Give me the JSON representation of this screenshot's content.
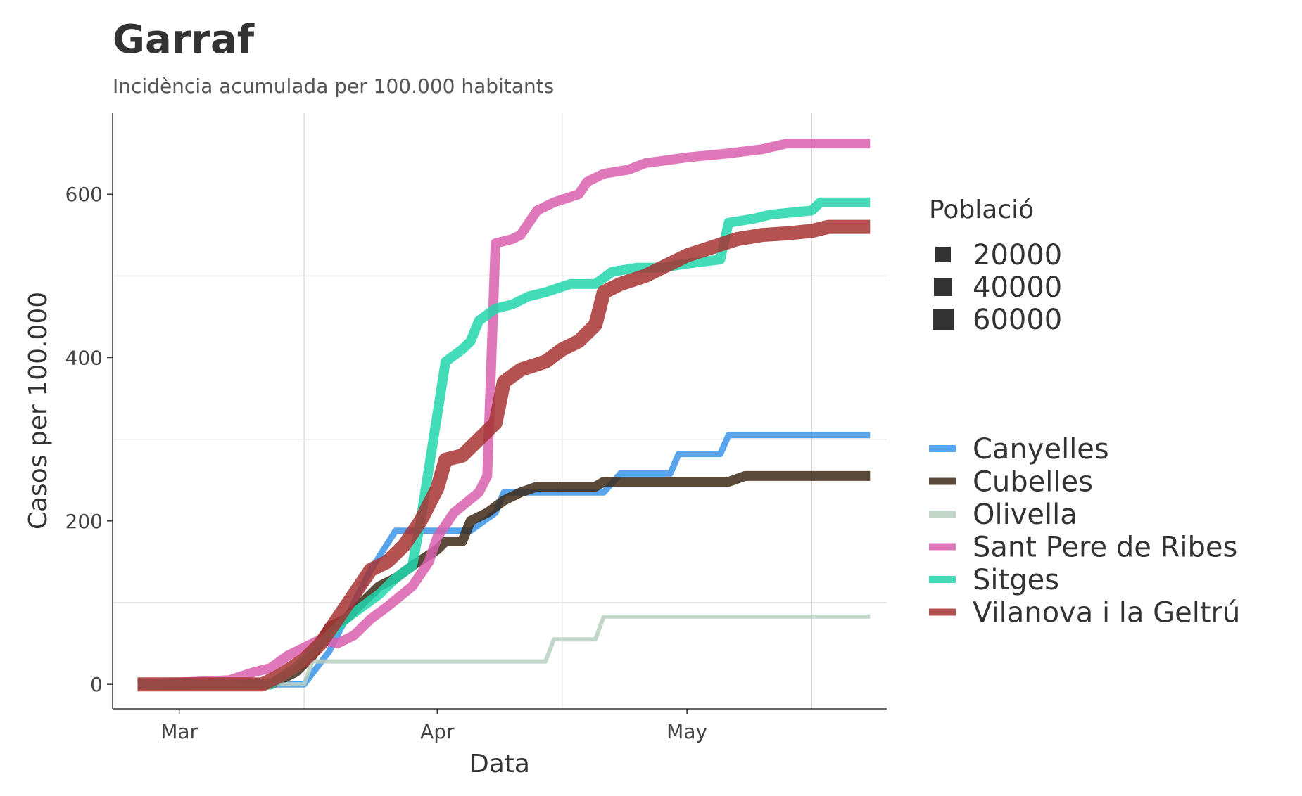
{
  "chart_data": {
    "type": "line",
    "title": "Garraf",
    "subtitle": "Incidència acumulada per 100.000 habitants",
    "xlabel": "Data",
    "ylabel": "Casos per 100.000",
    "x_ticks": [
      {
        "label": "Mar",
        "value": "2020-03-01"
      },
      {
        "label": "Apr",
        "value": "2020-04-01"
      },
      {
        "label": "May",
        "value": "2020-05-01"
      }
    ],
    "x_minor_ticks": [
      "2020-03-16",
      "2020-04-16",
      "2020-05-16"
    ],
    "xlim": [
      "2020-02-22",
      "2020-05-25"
    ],
    "y_ticks": [
      0,
      200,
      400,
      600
    ],
    "y_minor_ticks": [
      100,
      300,
      500
    ],
    "ylim": [
      -30,
      700
    ],
    "grid": true,
    "legend_placement": "right",
    "size_legend": {
      "title": "Població",
      "values": [
        "20000",
        "40000",
        "60000"
      ]
    },
    "series": [
      {
        "name": "Canyelles",
        "color": "#3b94ea",
        "size_rank": 1,
        "points": [
          [
            "2020-02-25",
            0
          ],
          [
            "2020-03-16",
            0
          ],
          [
            "2020-03-19",
            40
          ],
          [
            "2020-03-21",
            80
          ],
          [
            "2020-03-24",
            140
          ],
          [
            "2020-03-27",
            188
          ],
          [
            "2020-03-30",
            188
          ],
          [
            "2020-04-02",
            188
          ],
          [
            "2020-04-05",
            188
          ],
          [
            "2020-04-08",
            210
          ],
          [
            "2020-04-09",
            235
          ],
          [
            "2020-04-13",
            235
          ],
          [
            "2020-04-21",
            235
          ],
          [
            "2020-04-23",
            258
          ],
          [
            "2020-04-29",
            258
          ],
          [
            "2020-04-30",
            282
          ],
          [
            "2020-05-05",
            282
          ],
          [
            "2020-05-06",
            305
          ],
          [
            "2020-05-23",
            305
          ]
        ]
      },
      {
        "name": "Cubelles",
        "color": "#3e2a17",
        "size_rank": 2,
        "points": [
          [
            "2020-02-25",
            0
          ],
          [
            "2020-03-12",
            0
          ],
          [
            "2020-03-15",
            15
          ],
          [
            "2020-03-17",
            35
          ],
          [
            "2020-03-19",
            70
          ],
          [
            "2020-03-21",
            80
          ],
          [
            "2020-03-23",
            100
          ],
          [
            "2020-03-25",
            120
          ],
          [
            "2020-03-27",
            130
          ],
          [
            "2020-03-29",
            145
          ],
          [
            "2020-04-01",
            165
          ],
          [
            "2020-04-02",
            175
          ],
          [
            "2020-04-04",
            175
          ],
          [
            "2020-04-05",
            200
          ],
          [
            "2020-04-07",
            210
          ],
          [
            "2020-04-09",
            225
          ],
          [
            "2020-04-11",
            235
          ],
          [
            "2020-04-13",
            242
          ],
          [
            "2020-04-18",
            242
          ],
          [
            "2020-04-20",
            242
          ],
          [
            "2020-04-21",
            248
          ],
          [
            "2020-05-06",
            248
          ],
          [
            "2020-05-08",
            255
          ],
          [
            "2020-05-23",
            255
          ]
        ]
      },
      {
        "name": "Olivella",
        "color": "#b9cfc1",
        "size_rank": 0,
        "points": [
          [
            "2020-02-25",
            0
          ],
          [
            "2020-03-16",
            0
          ],
          [
            "2020-03-17",
            28
          ],
          [
            "2020-04-14",
            28
          ],
          [
            "2020-04-15",
            55
          ],
          [
            "2020-04-20",
            55
          ],
          [
            "2020-04-21",
            83
          ],
          [
            "2020-05-23",
            83
          ]
        ]
      },
      {
        "name": "Sant Pere de Ribes",
        "color": "#d960ae",
        "size_rank": 2,
        "points": [
          [
            "2020-02-25",
            0
          ],
          [
            "2020-03-07",
            5
          ],
          [
            "2020-03-10",
            15
          ],
          [
            "2020-03-12",
            20
          ],
          [
            "2020-03-14",
            35
          ],
          [
            "2020-03-16",
            45
          ],
          [
            "2020-03-18",
            55
          ],
          [
            "2020-03-20",
            50
          ],
          [
            "2020-03-22",
            60
          ],
          [
            "2020-03-24",
            80
          ],
          [
            "2020-03-26",
            95
          ],
          [
            "2020-03-29",
            120
          ],
          [
            "2020-03-31",
            150
          ],
          [
            "2020-04-01",
            180
          ],
          [
            "2020-04-03",
            210
          ],
          [
            "2020-04-06",
            235
          ],
          [
            "2020-04-07",
            255
          ],
          [
            "2020-04-08",
            540
          ],
          [
            "2020-04-10",
            545
          ],
          [
            "2020-04-11",
            550
          ],
          [
            "2020-04-13",
            580
          ],
          [
            "2020-04-15",
            590
          ],
          [
            "2020-04-18",
            600
          ],
          [
            "2020-04-19",
            615
          ],
          [
            "2020-04-21",
            625
          ],
          [
            "2020-04-24",
            630
          ],
          [
            "2020-04-26",
            638
          ],
          [
            "2020-05-01",
            645
          ],
          [
            "2020-05-06",
            650
          ],
          [
            "2020-05-10",
            655
          ],
          [
            "2020-05-13",
            662
          ],
          [
            "2020-05-23",
            662
          ]
        ]
      },
      {
        "name": "Sitges",
        "color": "#21d6ad",
        "size_rank": 2,
        "points": [
          [
            "2020-02-25",
            0
          ],
          [
            "2020-03-12",
            0
          ],
          [
            "2020-03-15",
            20
          ],
          [
            "2020-03-17",
            40
          ],
          [
            "2020-03-19",
            60
          ],
          [
            "2020-03-21",
            80
          ],
          [
            "2020-03-23",
            95
          ],
          [
            "2020-03-25",
            110
          ],
          [
            "2020-03-27",
            130
          ],
          [
            "2020-03-29",
            145
          ],
          [
            "2020-03-30",
            200
          ],
          [
            "2020-04-01",
            330
          ],
          [
            "2020-04-02",
            395
          ],
          [
            "2020-04-04",
            410
          ],
          [
            "2020-04-05",
            420
          ],
          [
            "2020-04-06",
            445
          ],
          [
            "2020-04-08",
            460
          ],
          [
            "2020-04-10",
            465
          ],
          [
            "2020-04-12",
            475
          ],
          [
            "2020-04-14",
            480
          ],
          [
            "2020-04-17",
            490
          ],
          [
            "2020-04-20",
            490
          ],
          [
            "2020-04-22",
            505
          ],
          [
            "2020-04-25",
            510
          ],
          [
            "2020-04-28",
            510
          ],
          [
            "2020-05-01",
            515
          ],
          [
            "2020-05-05",
            520
          ],
          [
            "2020-05-06",
            565
          ],
          [
            "2020-05-09",
            570
          ],
          [
            "2020-05-11",
            575
          ],
          [
            "2020-05-16",
            580
          ],
          [
            "2020-05-17",
            590
          ],
          [
            "2020-05-23",
            590
          ]
        ]
      },
      {
        "name": "Vilanova i la Geltrú",
        "color": "#a73232",
        "size_rank": 3,
        "points": [
          [
            "2020-02-25",
            0
          ],
          [
            "2020-03-11",
            0
          ],
          [
            "2020-03-13",
            10
          ],
          [
            "2020-03-16",
            30
          ],
          [
            "2020-03-18",
            50
          ],
          [
            "2020-03-20",
            80
          ],
          [
            "2020-03-22",
            110
          ],
          [
            "2020-03-24",
            140
          ],
          [
            "2020-03-26",
            150
          ],
          [
            "2020-03-28",
            170
          ],
          [
            "2020-03-30",
            200
          ],
          [
            "2020-04-01",
            240
          ],
          [
            "2020-04-02",
            275
          ],
          [
            "2020-04-04",
            280
          ],
          [
            "2020-04-06",
            300
          ],
          [
            "2020-04-08",
            320
          ],
          [
            "2020-04-09",
            370
          ],
          [
            "2020-04-11",
            385
          ],
          [
            "2020-04-14",
            395
          ],
          [
            "2020-04-16",
            410
          ],
          [
            "2020-04-18",
            420
          ],
          [
            "2020-04-20",
            440
          ],
          [
            "2020-04-21",
            480
          ],
          [
            "2020-04-23",
            490
          ],
          [
            "2020-04-26",
            500
          ],
          [
            "2020-04-28",
            510
          ],
          [
            "2020-05-01",
            525
          ],
          [
            "2020-05-04",
            535
          ],
          [
            "2020-05-07",
            545
          ],
          [
            "2020-05-10",
            550
          ],
          [
            "2020-05-13",
            552
          ],
          [
            "2020-05-16",
            555
          ],
          [
            "2020-05-18",
            560
          ],
          [
            "2020-05-23",
            560
          ]
        ]
      }
    ]
  }
}
